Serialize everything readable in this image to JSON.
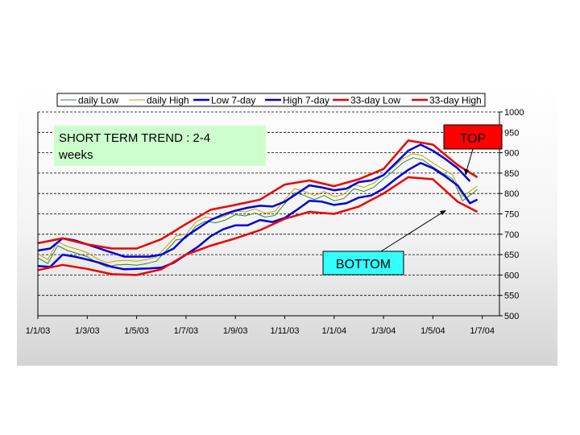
{
  "chart_data": {
    "type": "line",
    "title": "",
    "xlabel": "",
    "ylabel": "",
    "ylim": [
      500,
      1000
    ],
    "yticks": [
      "500",
      "550",
      "600",
      "650",
      "700",
      "750",
      "800",
      "850",
      "900",
      "950",
      "1000"
    ],
    "xticks": [
      "1/1/03",
      "1/3/03",
      "1/5/03",
      "1/7/03",
      "1/9/03",
      "1/11/03",
      "1/1/04",
      "1/3/04",
      "1/5/04",
      "1/7/04"
    ],
    "y_axis_side": "right",
    "grid": "horizontal dashed",
    "legend_position": "top",
    "series": [
      {
        "name": "daily Low",
        "color": "#2e8b2e",
        "width": 1,
        "x": [
          0,
          0.2,
          0.4,
          0.6,
          0.8,
          1,
          1.2,
          1.4,
          1.6,
          1.8,
          2,
          2.2,
          2.4,
          2.6,
          2.8,
          3,
          3.2,
          3.4,
          3.6,
          3.8,
          4,
          4.2,
          4.4,
          4.6,
          4.8,
          5,
          5.2,
          5.4,
          5.6,
          5.8,
          6,
          6.2,
          6.4,
          6.6,
          6.8,
          7,
          7.2,
          7.4,
          7.6,
          7.8,
          8,
          8.2,
          8.4,
          8.6,
          8.8,
          8.9
        ],
        "y": [
          642,
          628,
          672,
          660,
          653,
          645,
          630,
          620,
          625,
          626,
          624,
          628,
          634,
          660,
          686,
          690,
          720,
          732,
          728,
          735,
          748,
          745,
          752,
          742,
          746,
          775,
          802,
          795,
          785,
          795,
          782,
          788,
          812,
          805,
          815,
          836,
          855,
          876,
          888,
          882,
          865,
          850,
          836,
          782,
          800,
          810
        ]
      },
      {
        "name": "daily High",
        "color": "#c8a000",
        "width": 1,
        "x": [
          0,
          0.2,
          0.4,
          0.6,
          0.8,
          1,
          1.2,
          1.4,
          1.6,
          1.8,
          2,
          2.2,
          2.4,
          2.6,
          2.8,
          3,
          3.2,
          3.4,
          3.6,
          3.8,
          4,
          4.2,
          4.4,
          4.6,
          4.8,
          5,
          5.2,
          5.4,
          5.6,
          5.8,
          6,
          6.2,
          6.4,
          6.6,
          6.8,
          7,
          7.2,
          7.4,
          7.6,
          7.8,
          8,
          8.2,
          8.4,
          8.6,
          8.8,
          8.9
        ],
        "y": [
          652,
          638,
          682,
          670,
          663,
          655,
          640,
          630,
          635,
          636,
          634,
          638,
          644,
          670,
          696,
          700,
          730,
          742,
          738,
          745,
          758,
          755,
          762,
          752,
          756,
          785,
          812,
          805,
          795,
          805,
          792,
          798,
          822,
          815,
          825,
          846,
          865,
          886,
          898,
          892,
          875,
          860,
          846,
          792,
          810,
          818
        ]
      },
      {
        "name": "Low 7-day",
        "color": "#0000dd",
        "width": 2.5,
        "x": [
          0,
          0.25,
          0.5,
          0.75,
          1,
          1.25,
          1.5,
          1.75,
          2,
          2.25,
          2.5,
          2.75,
          3,
          3.25,
          3.5,
          3.75,
          4,
          4.25,
          4.5,
          4.75,
          5,
          5.25,
          5.5,
          5.75,
          6,
          6.25,
          6.5,
          6.75,
          7,
          7.25,
          7.5,
          7.75,
          8,
          8.25,
          8.5,
          8.75,
          8.9
        ],
        "y": [
          622,
          620,
          650,
          645,
          638,
          630,
          620,
          614,
          615,
          616,
          618,
          630,
          650,
          670,
          695,
          712,
          722,
          722,
          735,
          730,
          740,
          760,
          782,
          780,
          772,
          776,
          790,
          795,
          812,
          836,
          858,
          875,
          862,
          842,
          820,
          776,
          785
        ]
      },
      {
        "name": "High 7-day",
        "color": "#0000dd",
        "width": 2.5,
        "x": [
          0,
          0.25,
          0.5,
          0.75,
          1,
          1.25,
          1.5,
          1.75,
          2,
          2.25,
          2.5,
          2.75,
          3,
          3.25,
          3.5,
          3.75,
          4,
          4.25,
          4.5,
          4.75,
          5,
          5.25,
          5.5,
          5.75,
          6,
          6.25,
          6.5,
          6.75,
          7,
          7.25,
          7.5,
          7.75,
          8,
          8.25,
          8.5,
          8.75
        ],
        "y": [
          660,
          665,
          690,
          685,
          675,
          665,
          655,
          645,
          645,
          645,
          650,
          665,
          695,
          715,
          735,
          748,
          758,
          765,
          770,
          768,
          780,
          800,
          820,
          815,
          808,
          812,
          828,
          832,
          845,
          875,
          905,
          920,
          905,
          885,
          862,
          830
        ]
      },
      {
        "name": "33-day Low",
        "color": "#ee0000",
        "width": 2.5,
        "x": [
          0,
          0.5,
          1,
          1.5,
          2,
          2.5,
          3,
          3.5,
          4,
          4.5,
          5,
          5.5,
          6,
          6.5,
          7,
          7.5,
          8,
          8.5,
          8.9
        ],
        "y": [
          612,
          625,
          615,
          602,
          600,
          614,
          650,
          672,
          690,
          710,
          738,
          755,
          750,
          768,
          800,
          840,
          835,
          780,
          755
        ]
      },
      {
        "name": "33-day High",
        "color": "#ee0000",
        "width": 2.5,
        "x": [
          0,
          0.5,
          1,
          1.5,
          2,
          2.5,
          3,
          3.5,
          4,
          4.5,
          5,
          5.5,
          6,
          6.5,
          7,
          7.5,
          8,
          8.5,
          8.9
        ],
        "y": [
          678,
          690,
          675,
          665,
          665,
          688,
          725,
          760,
          772,
          785,
          822,
          832,
          818,
          835,
          860,
          930,
          920,
          870,
          840
        ]
      }
    ],
    "annotations": {
      "trend_box": {
        "line1": "SHORT TERM TREND : 2-4",
        "line2": "weeks",
        "color": "#ccffcc"
      },
      "top_label": {
        "text": "TOP",
        "color": "#ff0000"
      },
      "bottom_label": {
        "text": "BOTTOM",
        "color": "#33ffff"
      }
    }
  }
}
